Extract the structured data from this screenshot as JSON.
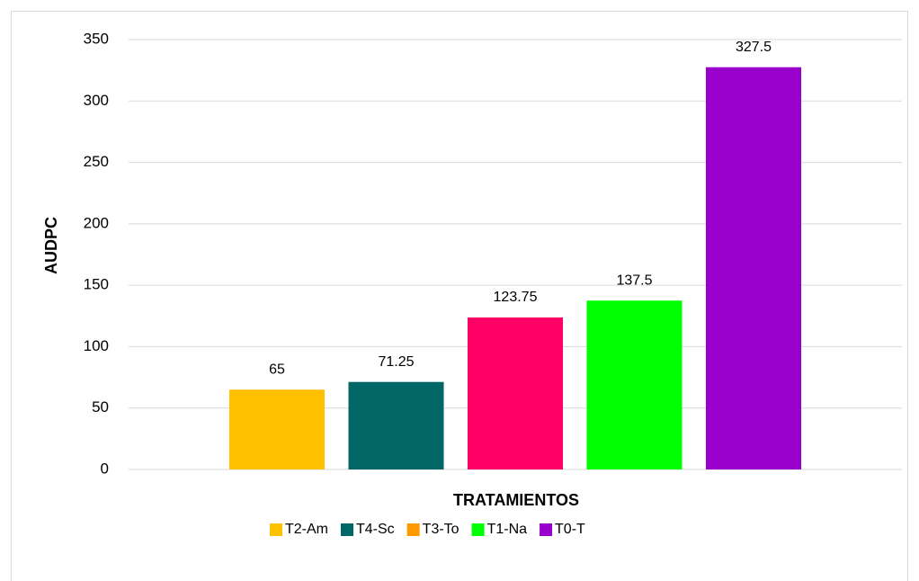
{
  "chart_data": {
    "type": "bar",
    "x_label": "TRATAMIENTOS",
    "y_label": "AUDPC",
    "categories": [
      null
    ],
    "series": [
      {
        "name": "T2-Am",
        "color": "#FFC000",
        "values": [
          65
        ]
      },
      {
        "name": "T4-Sc",
        "color": "#006666",
        "values": [
          71.25
        ]
      },
      {
        "name": "T3-To",
        "color": "#FF0066",
        "legend_color": "#FF9900",
        "values": [
          123.75
        ]
      },
      {
        "name": "T1-Na",
        "color": "#00FF00",
        "values": [
          137.5
        ]
      },
      {
        "name": "T0-T",
        "color": "#9900CC",
        "values": [
          327.5
        ]
      }
    ],
    "ylim": [
      0,
      350
    ],
    "yticks": [
      0,
      50,
      100,
      150,
      200,
      250,
      300,
      350
    ],
    "grid": true,
    "legend": "bottom"
  }
}
